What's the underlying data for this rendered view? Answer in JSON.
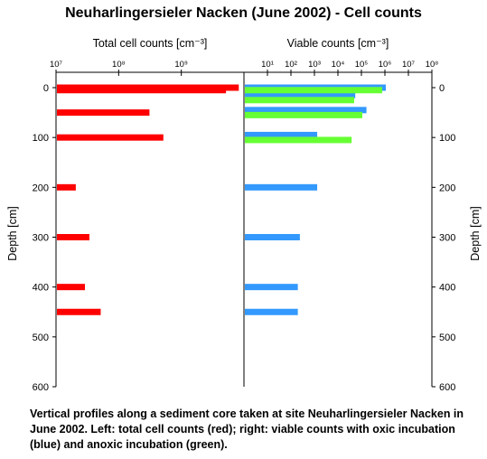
{
  "title": "Neuharlingersieler Nacken (June 2002) - Cell counts",
  "caption": "Vertical profiles along a sediment core taken at site Neuharlingersieler Nacken in June 2002. Left: total cell counts (red); right: viable counts with oxic incubation (blue) and anoxic incubation (green).",
  "chart_data": [
    {
      "type": "bar",
      "orientation": "horizontal",
      "xlabel": "Total cell counts [cm⁻³]",
      "ylabel": "Depth [cm]",
      "x_scale": "log",
      "xlim": [
        10000000,
        10000000000
      ],
      "x_ticks": [
        "10⁷",
        "10⁸",
        "10⁹"
      ],
      "ylim": [
        0,
        600
      ],
      "y_ticks": [
        "0",
        "100",
        "200",
        "300",
        "400",
        "500",
        "600"
      ],
      "y_inverted": true,
      "colors": {
        "total": "#ff0000"
      },
      "series": [
        {
          "depth": [
            0,
            5,
            50,
            100,
            200,
            300,
            400,
            450
          ],
          "values": [
            8000000000,
            5000000000,
            300000000,
            500000000,
            20000000,
            33000000,
            28000000,
            50000000
          ]
        }
      ]
    },
    {
      "type": "bar",
      "orientation": "horizontal",
      "xlabel": "Viable counts [cm⁻³]",
      "ylabel": "Depth [cm]",
      "x_scale": "log",
      "xlim": [
        1,
        100000000
      ],
      "x_ticks": [
        "10¹",
        "10²",
        "10³",
        "10⁴",
        "10⁵",
        "10⁶",
        "10⁷",
        "10⁸"
      ],
      "ylim": [
        0,
        600
      ],
      "y_ticks": [
        "0",
        "100",
        "200",
        "300",
        "400",
        "500",
        "600"
      ],
      "y_inverted": true,
      "colors": {
        "oxic": "#3399ff",
        "anoxic": "#66ff33"
      },
      "series": [
        {
          "key": "oxic",
          "depth": [
            0,
            15,
            45,
            95,
            200,
            300,
            400,
            450
          ],
          "values": [
            1000000,
            50000,
            150000,
            1200,
            1200,
            220,
            180,
            180
          ]
        },
        {
          "key": "anoxic",
          "depth": [
            5,
            25,
            55,
            105
          ],
          "values": [
            700000,
            45000,
            100000,
            35000
          ]
        }
      ]
    }
  ]
}
